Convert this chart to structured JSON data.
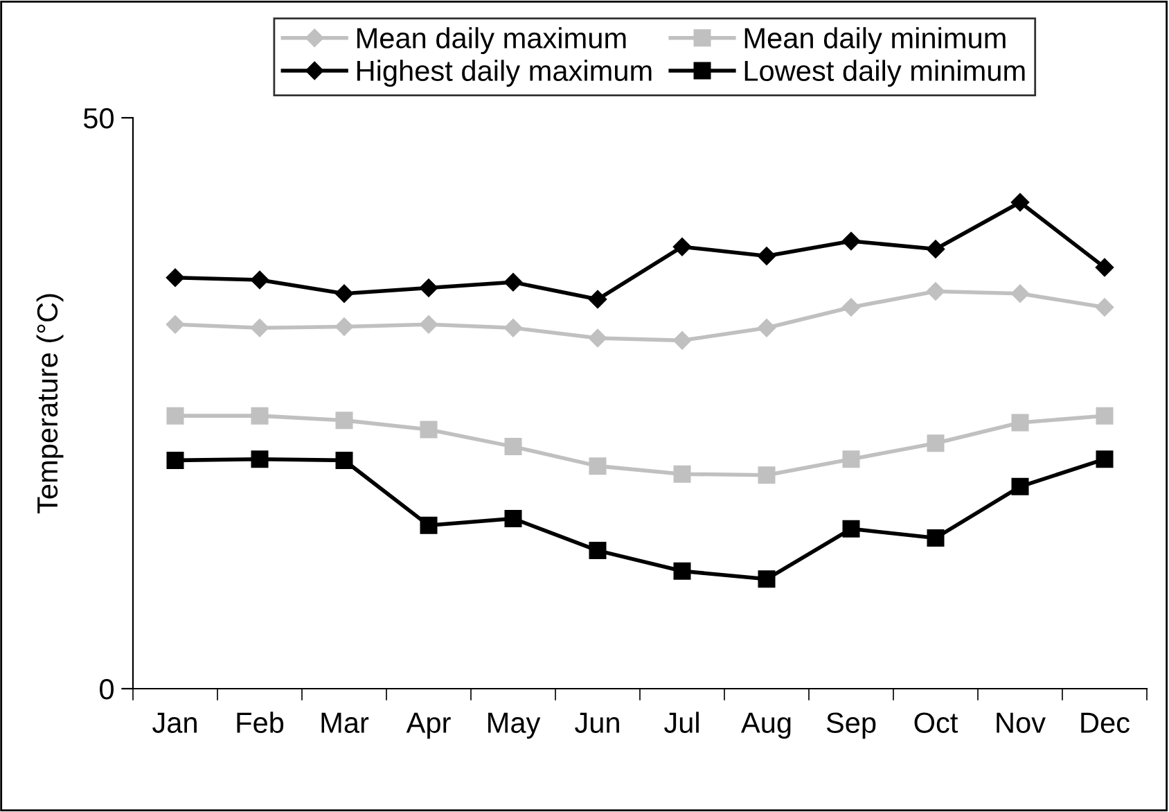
{
  "chart_data": {
    "type": "line",
    "ylabel": "Temperature (°C)",
    "categories": [
      "Jan",
      "Feb",
      "Mar",
      "Apr",
      "May",
      "Jun",
      "Jul",
      "Aug",
      "Sep",
      "Oct",
      "Nov",
      "Dec"
    ],
    "series": [
      {
        "name": "Mean daily maximum",
        "color": "#c0c0c0",
        "marker": "diamond",
        "values": [
          31.9,
          31.6,
          31.7,
          31.9,
          31.6,
          30.7,
          30.5,
          31.6,
          33.4,
          34.8,
          34.6,
          33.4
        ]
      },
      {
        "name": "Mean daily minimum",
        "color": "#c0c0c0",
        "marker": "square",
        "values": [
          23.9,
          23.9,
          23.5,
          22.7,
          21.2,
          19.5,
          18.8,
          18.7,
          20.1,
          21.5,
          23.3,
          23.9
        ]
      },
      {
        "name": "Highest daily maximum",
        "color": "#000000",
        "marker": "diamond",
        "values": [
          36.0,
          35.8,
          34.6,
          35.1,
          35.6,
          34.1,
          38.7,
          37.9,
          39.2,
          38.5,
          42.6,
          36.9
        ]
      },
      {
        "name": "Lowest daily minimum",
        "color": "#000000",
        "marker": "square",
        "values": [
          20.0,
          20.1,
          20.0,
          14.3,
          14.9,
          12.1,
          10.3,
          9.6,
          14.0,
          13.2,
          17.7,
          20.1
        ]
      }
    ],
    "ylim": [
      0,
      50
    ],
    "yticks": [
      0,
      50
    ],
    "grid": false,
    "legend": "top",
    "line_style": "solid"
  }
}
